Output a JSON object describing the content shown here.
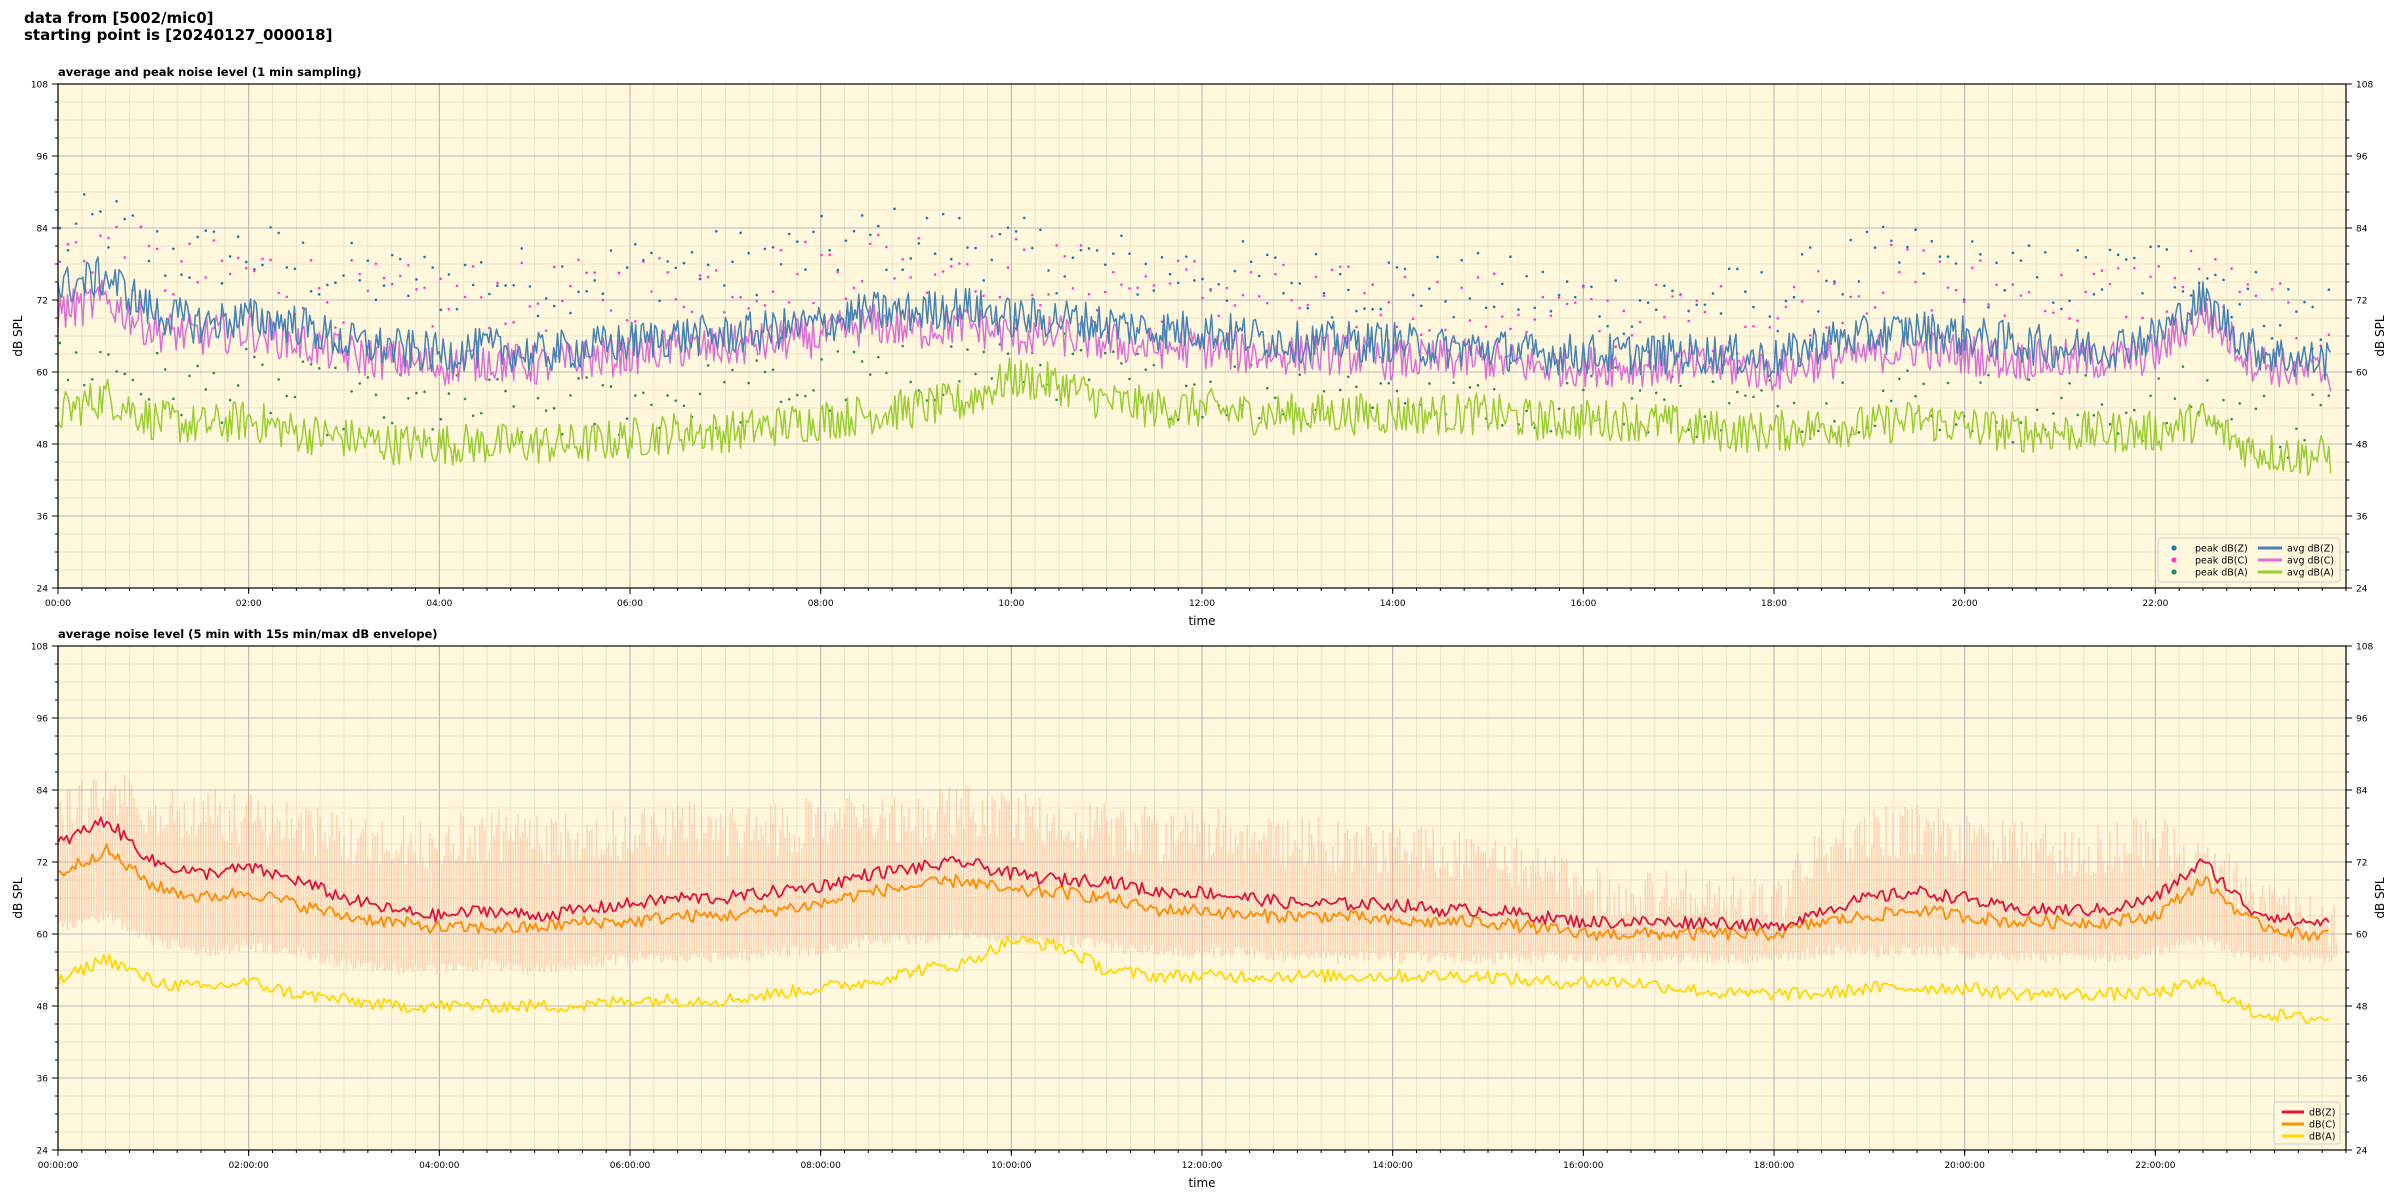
{
  "header": {
    "line1": "data from [5002/mic0]",
    "line2": "starting point is [20240127_000018]"
  },
  "colors": {
    "background": "#fff8dc",
    "peak_z": "#1f77b4",
    "peak_c": "#ff3ad0",
    "peak_a": "#2e8b57",
    "avg_z": "#4682b4",
    "avg_c": "#da70d6",
    "avg_a": "#9acd32",
    "line_z": "#dc143c",
    "line_c": "#ff8c00",
    "line_a": "#ffd700",
    "envelope": "#f4a582"
  },
  "chart_data": [
    {
      "type": "line",
      "title": "average and peak noise level (1 min sampling)",
      "xlabel": "time",
      "ylabel": "dB SPL",
      "ylabel_right": "dB SPL",
      "xlim": [
        0,
        24
      ],
      "ylim": [
        24,
        108
      ],
      "xticks": [
        0,
        2,
        4,
        6,
        8,
        10,
        12,
        14,
        16,
        18,
        20,
        22
      ],
      "xtick_labels": [
        "00:00",
        "02:00",
        "04:00",
        "06:00",
        "08:00",
        "10:00",
        "12:00",
        "14:00",
        "16:00",
        "18:00",
        "20:00",
        "22:00"
      ],
      "yticks": [
        24,
        36,
        48,
        60,
        72,
        84,
        96,
        108
      ],
      "ytick_labels": [
        "24",
        "36",
        "48",
        "60",
        "72",
        "84",
        "96",
        "108"
      ],
      "grid": true,
      "legend_position": "lower-right",
      "legend": [
        {
          "label": "peak dB(Z)",
          "kind": "dot",
          "color": "#1f77b4"
        },
        {
          "label": "peak dB(C)",
          "kind": "dot",
          "color": "#ff3ad0"
        },
        {
          "label": "peak dB(A)",
          "kind": "dot",
          "color": "#2e8b57"
        },
        {
          "label": "avg dB(Z)",
          "kind": "line",
          "color": "#4682b4"
        },
        {
          "label": "avg dB(C)",
          "kind": "line",
          "color": "#da70d6"
        },
        {
          "label": "avg dB(A)",
          "kind": "line",
          "color": "#9acd32"
        }
      ],
      "x": [
        0,
        0.5,
        1,
        1.5,
        2,
        2.5,
        3,
        3.5,
        4,
        4.5,
        5,
        5.5,
        6,
        6.5,
        7,
        7.5,
        8,
        8.5,
        9,
        9.5,
        10,
        10.5,
        11,
        11.5,
        12,
        12.5,
        13,
        13.5,
        14,
        14.5,
        15,
        15.5,
        16,
        16.5,
        17,
        17.5,
        18,
        18.5,
        19,
        19.5,
        20,
        20.5,
        21,
        21.5,
        22,
        22.5,
        23,
        23.5,
        24
      ],
      "series": [
        {
          "name": "avg dB(Z)",
          "values": [
            74,
            76,
            70,
            68,
            69,
            68,
            65,
            64,
            63,
            64,
            63,
            64,
            65,
            66,
            66,
            67,
            68,
            70,
            70,
            71,
            69,
            69,
            68,
            67,
            67,
            66,
            65,
            65,
            65,
            64,
            64,
            63,
            63,
            63,
            63,
            63,
            62,
            65,
            66,
            67,
            66,
            65,
            64,
            64,
            66,
            72,
            64,
            62,
            62
          ]
        },
        {
          "name": "avg dB(C)",
          "values": [
            70,
            72,
            67,
            66,
            67,
            65,
            63,
            62,
            61,
            62,
            61,
            62,
            63,
            64,
            64,
            65,
            66,
            68,
            67,
            68,
            66,
            66,
            65,
            64,
            64,
            63,
            63,
            63,
            62,
            62,
            62,
            61,
            61,
            61,
            61,
            61,
            60,
            62,
            63,
            64,
            63,
            62,
            62,
            62,
            63,
            70,
            62,
            60,
            60
          ]
        },
        {
          "name": "avg dB(A)",
          "values": [
            53,
            56,
            52,
            51,
            52,
            50,
            49,
            48,
            48,
            48,
            48,
            48,
            49,
            50,
            50,
            51,
            52,
            53,
            54,
            55,
            59,
            58,
            55,
            54,
            54,
            53,
            53,
            53,
            53,
            53,
            53,
            52,
            52,
            52,
            51,
            50,
            50,
            51,
            51,
            52,
            51,
            50,
            50,
            50,
            50,
            52,
            47,
            46,
            46
          ]
        },
        {
          "name": "peak dB(Z)",
          "values": [
            82,
            85,
            80,
            79,
            80,
            78,
            76,
            75,
            75,
            76,
            75,
            76,
            77,
            78,
            78,
            79,
            80,
            82,
            82,
            82,
            80,
            79,
            78,
            77,
            77,
            76,
            75,
            75,
            75,
            74,
            74,
            73,
            72,
            72,
            72,
            72,
            72,
            76,
            78,
            79,
            77,
            76,
            75,
            76,
            77,
            78,
            72,
            70,
            70
          ]
        },
        {
          "name": "peak dB(C)",
          "values": [
            79,
            82,
            77,
            76,
            77,
            75,
            73,
            72,
            72,
            73,
            72,
            73,
            74,
            75,
            75,
            76,
            77,
            79,
            79,
            79,
            77,
            76,
            75,
            74,
            74,
            73,
            72,
            72,
            72,
            71,
            71,
            70,
            69,
            69,
            69,
            69,
            69,
            73,
            75,
            76,
            74,
            73,
            72,
            73,
            74,
            76,
            70,
            68,
            68
          ]
        },
        {
          "name": "peak dB(A)",
          "values": [
            60,
            62,
            58,
            57,
            58,
            56,
            55,
            54,
            54,
            54,
            54,
            54,
            55,
            56,
            56,
            57,
            58,
            59,
            60,
            61,
            62,
            61,
            59,
            58,
            58,
            57,
            57,
            57,
            57,
            57,
            57,
            56,
            56,
            56,
            55,
            54,
            54,
            55,
            56,
            56,
            55,
            54,
            54,
            54,
            54,
            56,
            52,
            51,
            51
          ]
        }
      ]
    },
    {
      "type": "line",
      "title": "average noise level (5 min with 15s min/max dB envelope)",
      "xlabel": "time",
      "ylabel": "dB SPL",
      "ylabel_right": "dB SPL",
      "xlim": [
        0,
        24
      ],
      "ylim": [
        24,
        108
      ],
      "xticks": [
        0,
        2,
        4,
        6,
        8,
        10,
        12,
        14,
        16,
        18,
        20,
        22
      ],
      "xtick_labels": [
        "00:00:00",
        "02:00:00",
        "04:00:00",
        "06:00:00",
        "08:00:00",
        "10:00:00",
        "12:00:00",
        "14:00:00",
        "16:00:00",
        "18:00:00",
        "20:00:00",
        "22:00:00"
      ],
      "yticks": [
        24,
        36,
        48,
        60,
        72,
        84,
        96,
        108
      ],
      "ytick_labels": [
        "24",
        "36",
        "48",
        "60",
        "72",
        "84",
        "96",
        "108"
      ],
      "grid": true,
      "legend_position": "lower-right",
      "legend": [
        {
          "label": "dB(Z)",
          "kind": "line",
          "color": "#dc143c"
        },
        {
          "label": "dB(C)",
          "kind": "line",
          "color": "#ff8c00"
        },
        {
          "label": "dB(A)",
          "kind": "line",
          "color": "#ffd700"
        }
      ],
      "x": [
        0,
        0.5,
        1,
        1.5,
        2,
        2.5,
        3,
        3.5,
        4,
        4.5,
        5,
        5.5,
        6,
        6.5,
        7,
        7.5,
        8,
        8.5,
        9,
        9.5,
        10,
        10.5,
        11,
        11.5,
        12,
        12.5,
        13,
        13.5,
        14,
        14.5,
        15,
        15.5,
        16,
        16.5,
        17,
        17.5,
        18,
        18.5,
        19,
        19.5,
        20,
        20.5,
        21,
        21.5,
        22,
        22.5,
        23,
        23.5,
        24
      ],
      "series": [
        {
          "name": "dB(Z)",
          "values": [
            75,
            79,
            72,
            70,
            71,
            69,
            66,
            64,
            63,
            64,
            63,
            64,
            65,
            66,
            66,
            67,
            68,
            70,
            71,
            72,
            70,
            69,
            69,
            67,
            67,
            66,
            65,
            65,
            65,
            64,
            64,
            63,
            62,
            62,
            62,
            62,
            61,
            64,
            66,
            67,
            66,
            64,
            64,
            64,
            66,
            72,
            64,
            62,
            62
          ]
        },
        {
          "name": "dB(C)",
          "values": [
            70,
            74,
            68,
            66,
            67,
            65,
            63,
            62,
            61,
            61,
            61,
            62,
            62,
            63,
            63,
            64,
            65,
            67,
            68,
            69,
            67,
            67,
            66,
            64,
            64,
            63,
            63,
            63,
            62,
            62,
            62,
            61,
            60,
            60,
            60,
            60,
            60,
            62,
            63,
            64,
            63,
            62,
            62,
            62,
            63,
            69,
            62,
            60,
            60
          ]
        },
        {
          "name": "dB(A)",
          "values": [
            52,
            56,
            52,
            51,
            52,
            50,
            49,
            48,
            48,
            48,
            48,
            48,
            49,
            49,
            49,
            50,
            51,
            52,
            54,
            55,
            59,
            58,
            54,
            53,
            53,
            53,
            53,
            53,
            53,
            53,
            53,
            52,
            52,
            52,
            51,
            50,
            50,
            50,
            51,
            51,
            51,
            50,
            50,
            50,
            50,
            52,
            47,
            46,
            46
          ]
        }
      ],
      "envelope": {
        "min": [
          62,
          64,
          60,
          58,
          59,
          58,
          56,
          55,
          55,
          56,
          55,
          56,
          57,
          57,
          57,
          58,
          58,
          60,
          60,
          61,
          60,
          60,
          59,
          58,
          58,
          58,
          57,
          57,
          57,
          57,
          57,
          57,
          57,
          57,
          57,
          57,
          57,
          58,
          58,
          58,
          58,
          57,
          57,
          57,
          58,
          60,
          57,
          57,
          57
        ],
        "max": [
          84,
          88,
          85,
          84,
          84,
          82,
          80,
          80,
          80,
          81,
          80,
          81,
          81,
          82,
          82,
          82,
          83,
          84,
          84,
          85,
          84,
          83,
          82,
          81,
          81,
          80,
          80,
          79,
          79,
          78,
          78,
          75,
          72,
          71,
          71,
          70,
          70,
          78,
          81,
          82,
          80,
          79,
          78,
          79,
          80,
          78,
          70,
          67,
          67
        ]
      }
    }
  ]
}
